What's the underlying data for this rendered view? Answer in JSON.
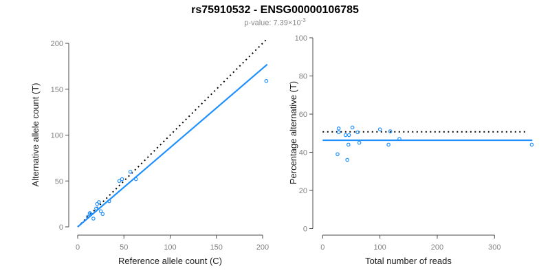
{
  "header": {
    "title": "rs75910532 - ENSG00000106785",
    "subtitle_prefix": "p-value: 7.39×10",
    "subtitle_exponent": "-3",
    "subtitle_full": "p-value: 7.39×10^-3"
  },
  "colors": {
    "accent_blue": "#1E90FF",
    "line_black": "#000000",
    "tick_label": "#808080",
    "axis_line": "#4a4a4a",
    "axis_title": "#1a1a1a",
    "subtitle_gray": "#888888"
  },
  "chart_data": [
    {
      "type": "scatter",
      "name": "allele-counts-plot",
      "title": "",
      "xlabel": "Reference allele count (C)",
      "ylabel": "Alternative allele count (T)",
      "xlim": [
        0,
        205
      ],
      "ylim": [
        0,
        205
      ],
      "xticks": [
        0,
        50,
        100,
        150,
        200
      ],
      "yticks": [
        0,
        50,
        100,
        150,
        200
      ],
      "grid": false,
      "marker": "open-circle",
      "points": [
        [
          11,
          11
        ],
        [
          13,
          15
        ],
        [
          14,
          14
        ],
        [
          17,
          9
        ],
        [
          20,
          20
        ],
        [
          21,
          25
        ],
        [
          23,
          27
        ],
        [
          25,
          17
        ],
        [
          27,
          14
        ],
        [
          34,
          28
        ],
        [
          45,
          50
        ],
        [
          48,
          52
        ],
        [
          57,
          60
        ],
        [
          63,
          52
        ],
        [
          204,
          159
        ]
      ],
      "lines": [
        {
          "name": "identity-line",
          "style": "dotted",
          "color": "#000000",
          "from": [
            0,
            0
          ],
          "to": [
            205,
            205
          ],
          "meaning": "expected 1:1 line"
        },
        {
          "name": "fit-line",
          "style": "solid",
          "color": "#1E90FF",
          "from": [
            0,
            0
          ],
          "to": [
            205,
            177
          ],
          "meaning": "fitted allelic ratio ~0.865"
        }
      ]
    },
    {
      "type": "scatter",
      "name": "percentage-alternative-plot",
      "title": "",
      "xlabel": "Total number of reads",
      "ylabel": "Percentage alternative (T)",
      "xlim": [
        0,
        370
      ],
      "ylim": [
        0,
        100
      ],
      "xticks": [
        0,
        100,
        200,
        300
      ],
      "yticks": [
        0,
        20,
        40,
        60,
        80,
        100
      ],
      "grid": false,
      "marker": "open-circle",
      "points": [
        [
          26,
          39
        ],
        [
          28,
          50.5
        ],
        [
          28,
          52.5
        ],
        [
          40,
          49
        ],
        [
          43,
          36
        ],
        [
          45,
          44
        ],
        [
          46,
          49
        ],
        [
          52,
          53
        ],
        [
          61,
          50.5
        ],
        [
          64,
          45
        ],
        [
          100,
          52
        ],
        [
          115,
          44
        ],
        [
          118,
          51
        ],
        [
          134,
          47
        ],
        [
          365,
          44
        ]
      ],
      "lines": [
        {
          "name": "null-line",
          "style": "dotted",
          "color": "#000000",
          "from": [
            0,
            50.7
          ],
          "to": [
            357,
            50.7
          ],
          "meaning": "expected percentage"
        },
        {
          "name": "fit-line",
          "style": "solid",
          "color": "#1E90FF",
          "from": [
            0,
            46.3
          ],
          "to": [
            366,
            46.3
          ],
          "meaning": "observed mean percentage"
        }
      ]
    }
  ]
}
